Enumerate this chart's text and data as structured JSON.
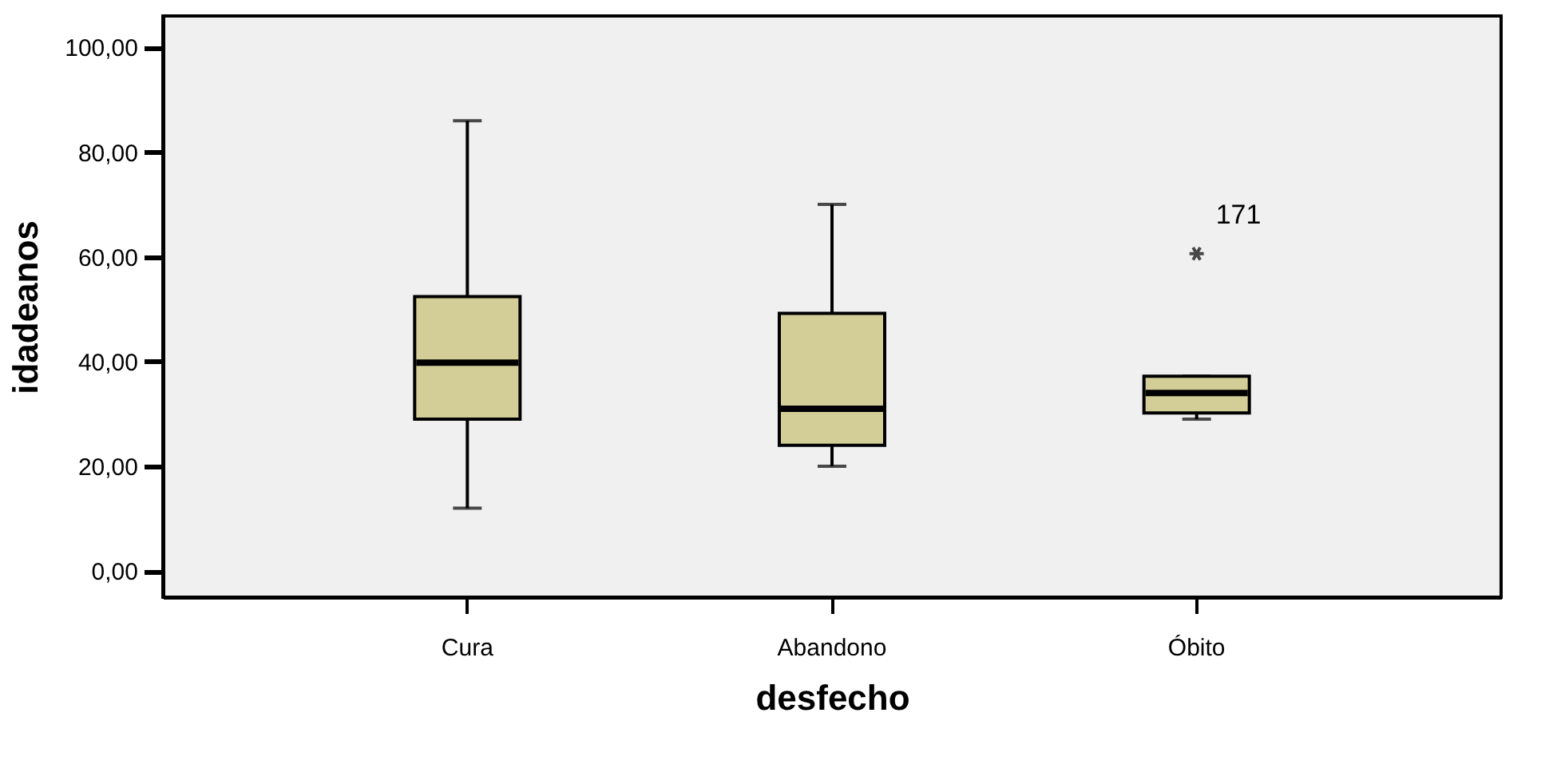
{
  "chart_data": {
    "type": "box",
    "xlabel": "desfecho",
    "ylabel": "idadeanos",
    "categories": [
      "Cura",
      "Abandono",
      "Óbito"
    ],
    "boxes": [
      {
        "low": 12,
        "q1": 29,
        "median": 39.8,
        "q3": 52.4,
        "high": 86
      },
      {
        "low": 20,
        "q1": 24,
        "median": 31,
        "q3": 49.2,
        "high": 70
      },
      {
        "low": 29,
        "q1": 30.2,
        "median": 34,
        "q3": 37.2,
        "high": 37.2,
        "outliers": [
          60.6
        ]
      }
    ],
    "color": "#d3ce98",
    "marker": "star",
    "ylim": [
      -5,
      106
    ],
    "yticks": [
      {
        "value": 0,
        "label": "0,00"
      },
      {
        "value": 20,
        "label": "20,00"
      },
      {
        "value": 40,
        "label": "40,00"
      },
      {
        "value": 60,
        "label": "60,00"
      },
      {
        "value": 80,
        "label": "80,00"
      },
      {
        "value": 100,
        "label": "100,00"
      }
    ],
    "annotations": [
      "171"
    ],
    "line_style": "solid"
  }
}
